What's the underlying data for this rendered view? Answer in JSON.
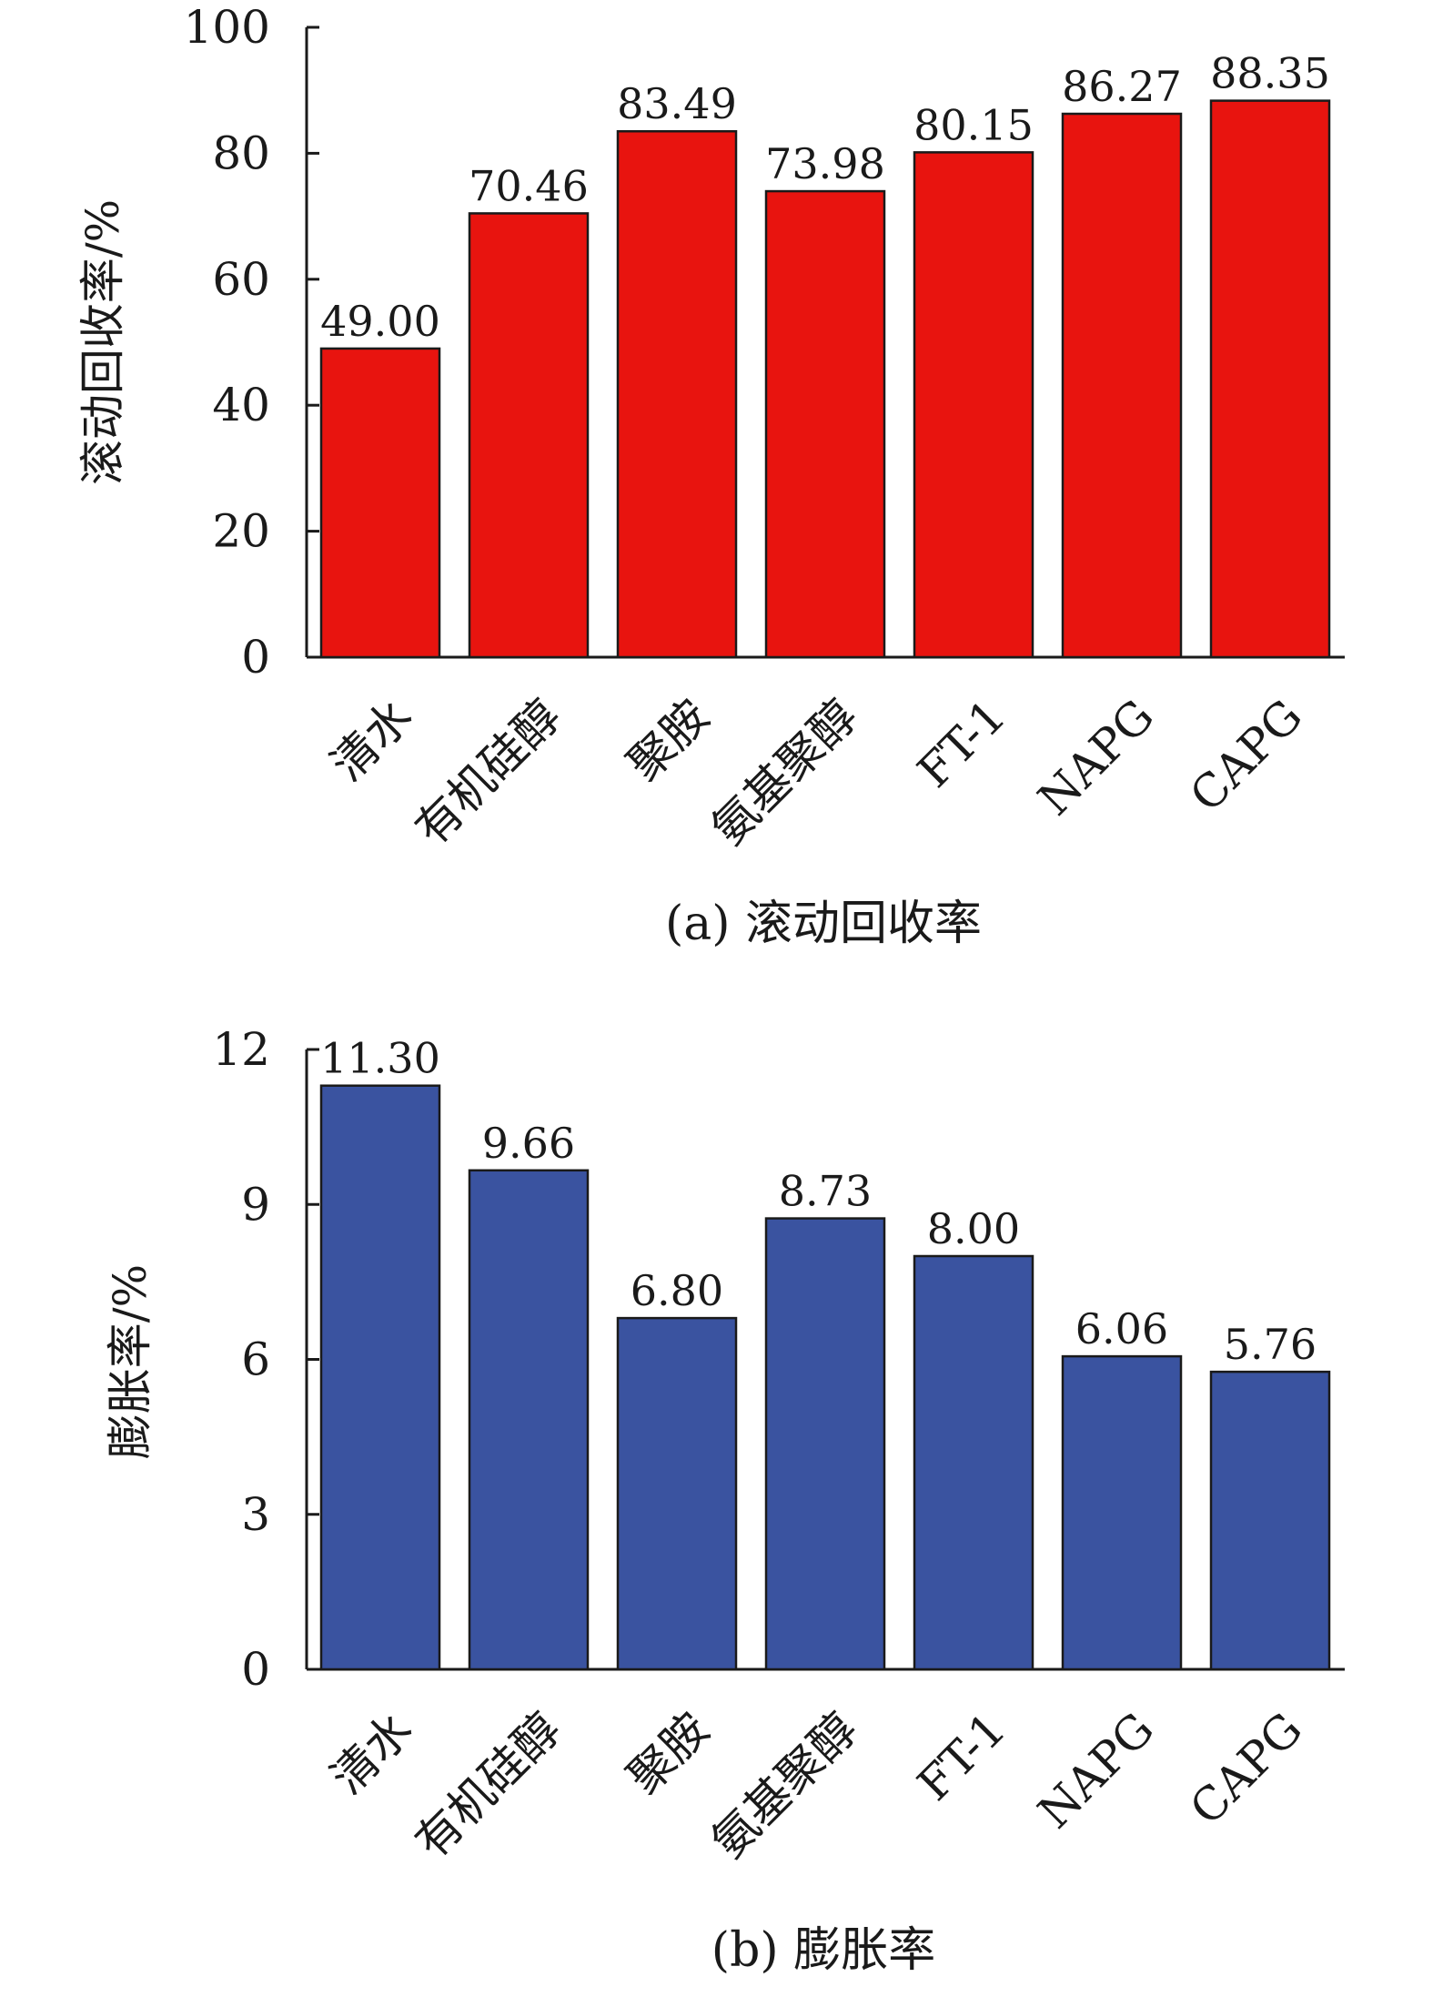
{
  "colors": {
    "panel_a_bar": "#e8140f",
    "panel_b_bar": "#3a53a0",
    "axis": "#1a1a1a"
  },
  "chart_data": [
    {
      "type": "bar",
      "caption": "(a) 滚动回收率",
      "ylabel": "滚动回收率/%",
      "xlabel": "",
      "categories": [
        "清水",
        "有机硅醇",
        "聚胺",
        "氨基聚醇",
        "FT-1",
        "NAPG",
        "CAPG"
      ],
      "values": [
        49.0,
        70.46,
        83.49,
        73.98,
        80.15,
        86.27,
        88.35
      ],
      "value_labels": [
        "49.00",
        "70.46",
        "83.49",
        "73.98",
        "80.15",
        "86.27",
        "88.35"
      ],
      "ylim": [
        0,
        100
      ],
      "yticks": [
        "0",
        "20",
        "40",
        "60",
        "80",
        "100"
      ],
      "grid": false,
      "legend": "none"
    },
    {
      "type": "bar",
      "caption": "(b) 膨胀率",
      "ylabel": "膨胀率/%",
      "xlabel": "",
      "categories": [
        "清水",
        "有机硅醇",
        "聚胺",
        "氨基聚醇",
        "FT-1",
        "NAPG",
        "CAPG"
      ],
      "values": [
        11.3,
        9.66,
        6.8,
        8.73,
        8.0,
        6.06,
        5.76
      ],
      "value_labels": [
        "11.30",
        "9.66",
        "6.80",
        "8.73",
        "8.00",
        "6.06",
        "5.76"
      ],
      "ylim": [
        0,
        12
      ],
      "yticks": [
        "0",
        "3",
        "6",
        "9",
        "12"
      ],
      "grid": false,
      "legend": "none"
    }
  ]
}
